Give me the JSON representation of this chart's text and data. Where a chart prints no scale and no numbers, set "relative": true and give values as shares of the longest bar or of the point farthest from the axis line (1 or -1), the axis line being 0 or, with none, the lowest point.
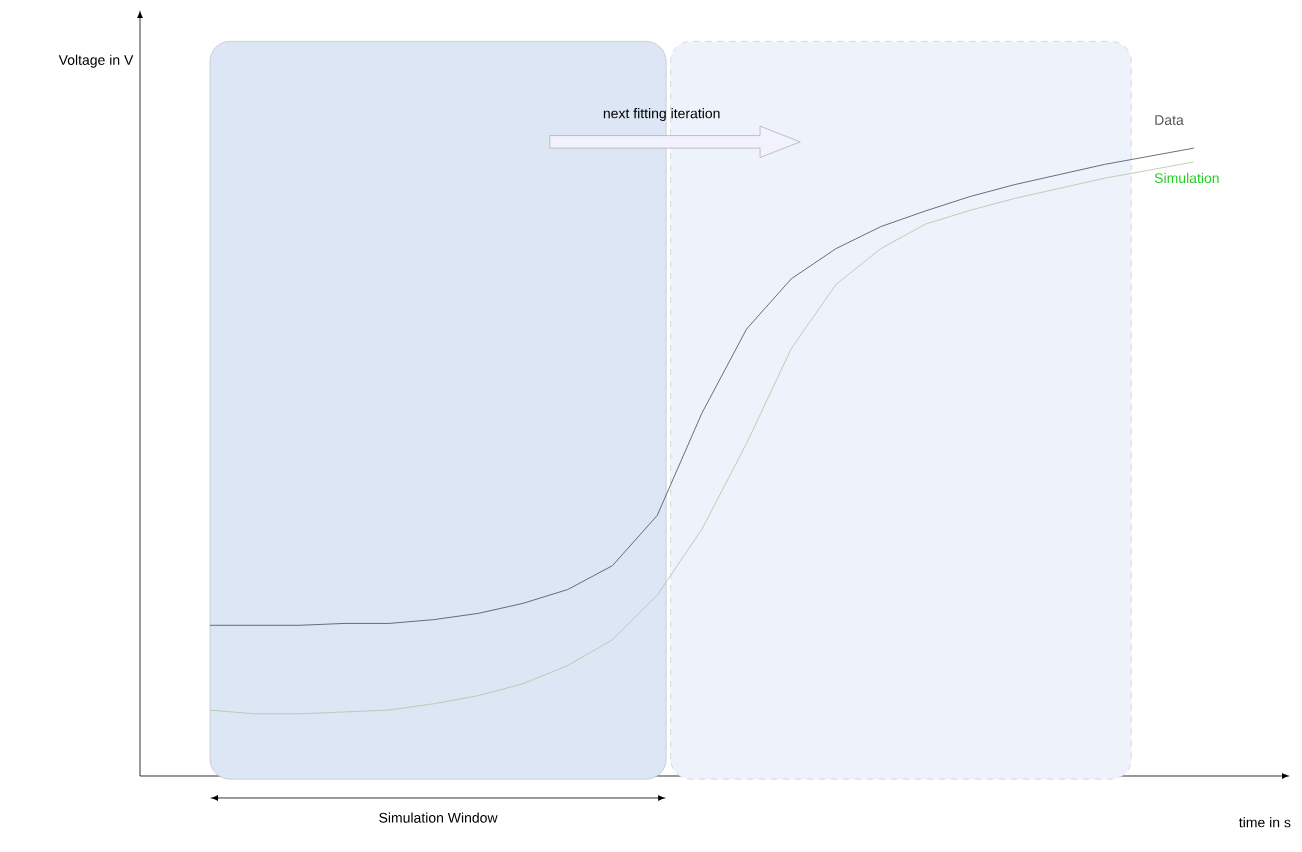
{
  "chart_data": {
    "type": "line",
    "relative": true,
    "xlabel": "time in s",
    "categories": [
      null,
      null,
      null,
      null,
      null,
      null,
      null,
      null,
      null,
      null,
      null,
      null,
      null,
      null,
      null,
      null,
      null,
      null,
      null,
      null,
      null,
      null,
      null
    ],
    "series": [
      {
        "name": "Data",
        "color": "#4a4a5a",
        "values": [
          0.24,
          0.24,
          0.24,
          0.243,
          0.243,
          0.249,
          0.259,
          0.275,
          0.297,
          0.335,
          0.415,
          0.578,
          0.712,
          0.792,
          0.84,
          0.875,
          0.9,
          0.923,
          0.942,
          0.958,
          0.974,
          0.987,
          1
        ]
      },
      {
        "name": "Simulation",
        "color": "#a9c9a2",
        "values": [
          0.105,
          0.099,
          0.099,
          0.102,
          0.105,
          0.115,
          0.128,
          0.147,
          0.176,
          0.217,
          0.288,
          0.393,
          0.53,
          0.681,
          0.783,
          0.84,
          0.879,
          0.901,
          0.92,
          0.936,
          0.952,
          0.965,
          0.978
        ]
      }
    ],
    "annotations": [
      "next fitting iteration",
      "Simulation Window",
      "Voltage in V"
    ]
  }
}
